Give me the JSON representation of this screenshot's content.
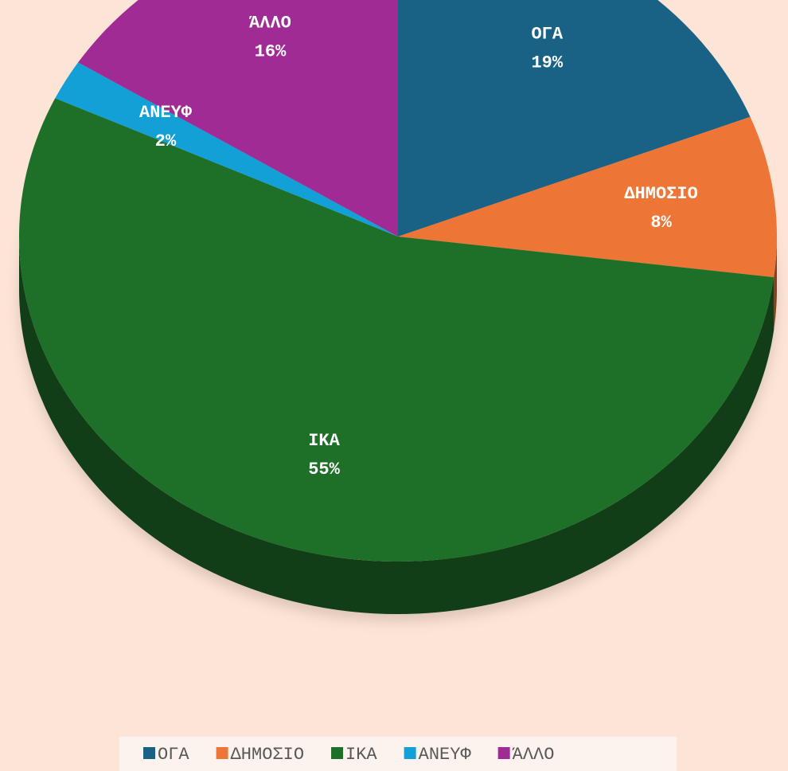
{
  "chart_data": {
    "type": "pie",
    "categories": [
      "ΟΓΑ",
      "ΔΗΜΟΣΙΟ",
      "ΙΚΑ",
      "ΑΝΕΥΦ",
      "ΆΛΛΟ"
    ],
    "values": [
      19,
      8,
      55,
      2,
      16
    ],
    "value_labels": [
      "19%",
      "8%",
      "55%",
      "2%",
      "16%"
    ],
    "colors": [
      "#1a6285",
      "#ed7535",
      "#1e7029",
      "#12a0d6",
      "#a02b94"
    ],
    "legend": "bottom"
  }
}
